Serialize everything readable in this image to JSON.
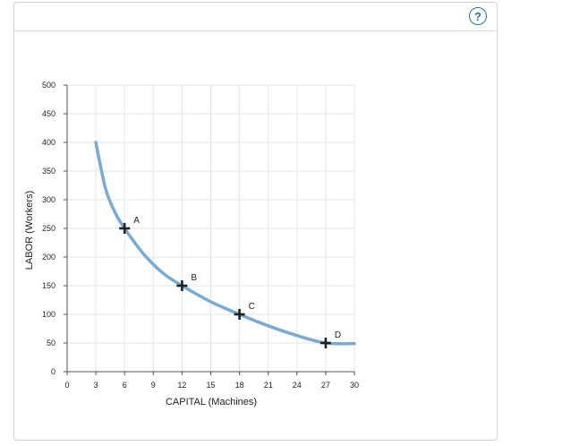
{
  "help_button": {
    "label": "?",
    "icon": "help-icon"
  },
  "colors": {
    "curve": "#79aad6",
    "marker": "#222222",
    "grid": "#e6e6e6",
    "help": "#2c6fa8"
  },
  "chart_data": {
    "type": "line",
    "xlabel": "CAPITAL (Machines)",
    "ylabel": "LABOR (Workers)",
    "xlim": [
      0,
      30
    ],
    "ylim": [
      0,
      500
    ],
    "x_ticks": [
      0,
      3,
      6,
      9,
      12,
      15,
      18,
      21,
      24,
      27,
      30
    ],
    "y_ticks": [
      0,
      50,
      100,
      150,
      200,
      250,
      300,
      350,
      400,
      450,
      500
    ],
    "grid": true,
    "series": [
      {
        "x": [
          3,
          4,
          5,
          6,
          8,
          10,
          12,
          15,
          18,
          21,
          24,
          27,
          30
        ],
        "y": [
          400,
          320,
          278,
          250,
          205,
          172,
          150,
          122,
          100,
          80,
          63,
          50,
          49
        ]
      }
    ],
    "points": [
      {
        "label": "A",
        "x": 6,
        "y": 250
      },
      {
        "label": "B",
        "x": 12,
        "y": 150
      },
      {
        "label": "C",
        "x": 18,
        "y": 100
      },
      {
        "label": "D",
        "x": 27,
        "y": 50
      }
    ]
  }
}
